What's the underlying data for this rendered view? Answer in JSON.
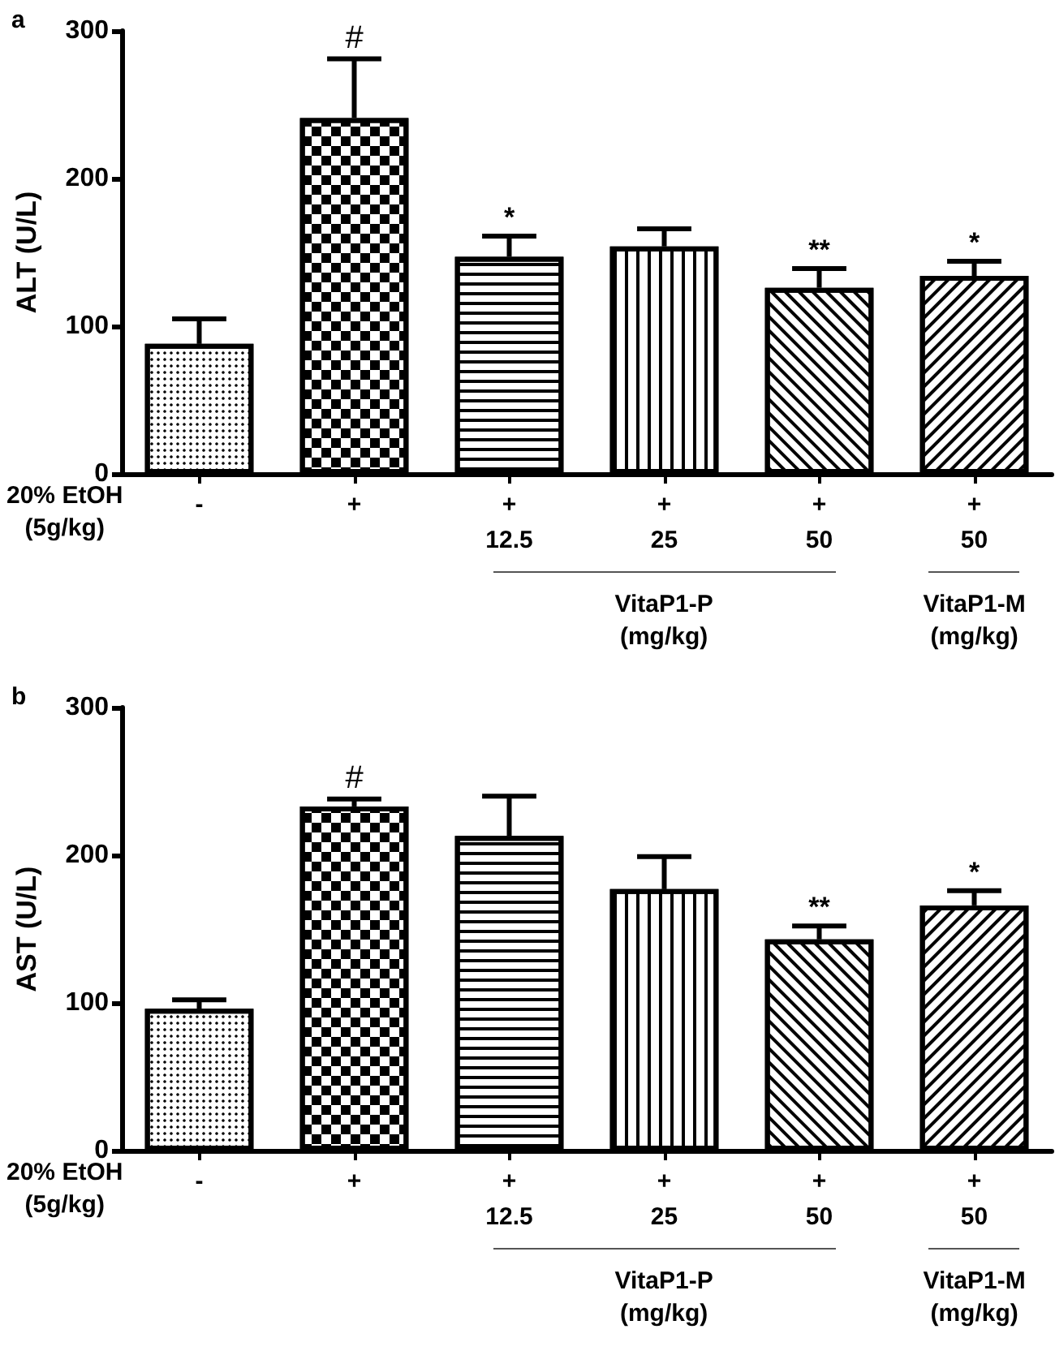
{
  "chart_data": [
    {
      "type": "bar",
      "title": "a",
      "ylabel": "ALT (U/L)",
      "categories": [
        "-",
        "+",
        "+\n12.5",
        "+\n25",
        "+\n50",
        "+\n50"
      ],
      "values": [
        88,
        241,
        147,
        154,
        126,
        134
      ],
      "errors": [
        17,
        40,
        14,
        12,
        13,
        10
      ],
      "value_labels": [
        null,
        "#",
        "*",
        null,
        "**",
        "*"
      ],
      "color": "#000000",
      "ylim": [
        0,
        300
      ],
      "yticks": [
        0,
        100,
        200,
        300
      ],
      "annotations": [
        "20% EtOH\n(5g/kg)",
        "VitaP1-P\n(mg/kg)",
        "VitaP1-M\n(mg/kg)"
      ]
    },
    {
      "type": "bar",
      "title": "b",
      "ylabel": "AST (U/L)",
      "categories": [
        "-",
        "+",
        "+\n12.5",
        "+\n25",
        "+\n50",
        "+\n50"
      ],
      "values": [
        96,
        233,
        213,
        177,
        143,
        166
      ],
      "errors": [
        6,
        5,
        27,
        22,
        9,
        10
      ],
      "value_labels": [
        null,
        "#",
        null,
        null,
        "**",
        "*"
      ],
      "color": "#000000",
      "ylim": [
        0,
        300
      ],
      "yticks": [
        0,
        100,
        200,
        300
      ],
      "annotations": [
        "20% EtOH\n(5g/kg)",
        "VitaP1-P\n(mg/kg)",
        "VitaP1-M\n(mg/kg)"
      ]
    }
  ]
}
